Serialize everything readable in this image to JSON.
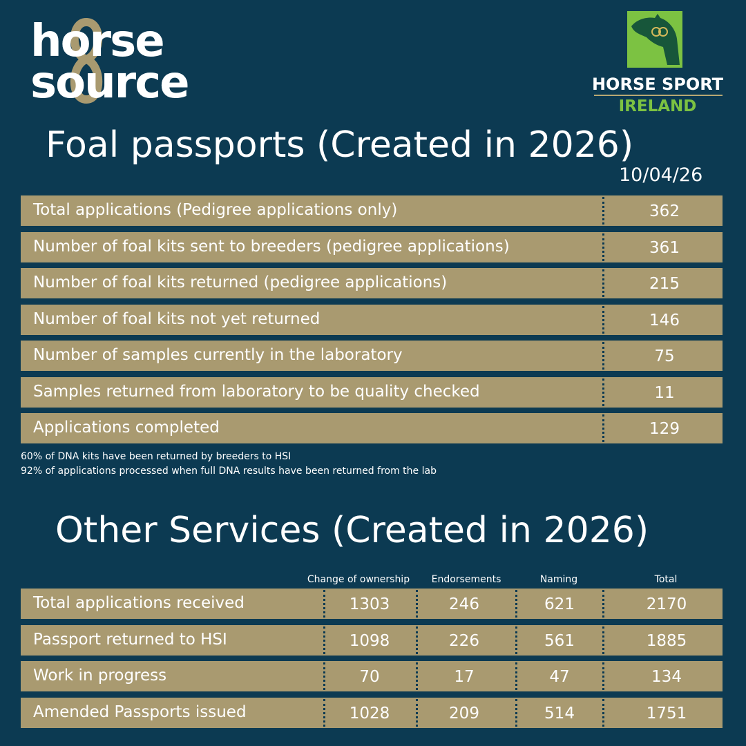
{
  "brand": {
    "line1": "horse",
    "line2": "source"
  },
  "partner_logo": {
    "name_line1": "HORSE SPORT",
    "name_line2": "IRELAND",
    "colors": {
      "emblem": "#7cc242",
      "subtitle": "#7cc242",
      "divider": "#b8a873"
    }
  },
  "colors": {
    "background": "#0c3a52",
    "row": "#a99a70",
    "text": "#ffffff",
    "logo_gold": "#a99a70"
  },
  "foal": {
    "title": "Foal passports (Created in 2026)",
    "date": "10/04/26",
    "rows": [
      {
        "label": "Total applications (Pedigree applications only)",
        "value": "362"
      },
      {
        "label": "Number of foal kits sent to breeders (pedigree applications)",
        "value": "361"
      },
      {
        "label": "Number of foal kits returned (pedigree applications)",
        "value": "215"
      },
      {
        "label": "Number of foal kits not yet returned",
        "value": "146"
      },
      {
        "label": "Number of samples currently in the laboratory",
        "value": "75"
      },
      {
        "label": "Samples returned from laboratory to be quality checked",
        "value": "11"
      },
      {
        "label": "Applications completed",
        "value": "129"
      }
    ],
    "notes": [
      "60% of DNA kits have been returned by breeders to HSI",
      "92% of applications processed when full DNA results have been returned from the lab"
    ]
  },
  "other": {
    "title": "Other Services (Created in 2026)",
    "columns": [
      "Change of ownership",
      "Endorsements",
      "Naming",
      "Total"
    ],
    "rows": [
      {
        "label": "Total applications received",
        "values": [
          "1303",
          "246",
          "621",
          "2170"
        ]
      },
      {
        "label": "Passport returned to HSI",
        "values": [
          "1098",
          "226",
          "561",
          "1885"
        ]
      },
      {
        "label": "Work in progress",
        "values": [
          "70",
          "17",
          "47",
          "134"
        ]
      },
      {
        "label": "Amended Passports issued",
        "values": [
          "1028",
          "209",
          "514",
          "1751"
        ]
      }
    ]
  }
}
